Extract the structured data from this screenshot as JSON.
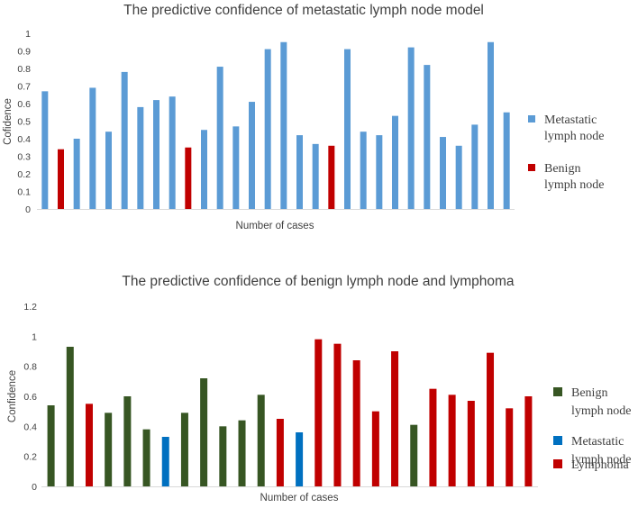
{
  "chart_data": [
    {
      "type": "bar",
      "title": "The predictive confidence of metastatic lymph node model",
      "xlabel": "Number of cases",
      "ylabel": "Cofidence",
      "ylim": [
        0,
        1
      ],
      "yticks": [
        "0",
        "0.1",
        "0.2",
        "0.3",
        "0.4",
        "0.5",
        "0.6",
        "0.7",
        "0.8",
        "0.9",
        "1"
      ],
      "grid": false,
      "legend_position": "right",
      "legend": [
        {
          "label_lines": [
            "Metastatic",
            "lymph node"
          ],
          "color": "#5b9bd5"
        },
        {
          "label_lines": [
            "Benign",
            "lymph node"
          ],
          "color": "#c00000"
        }
      ],
      "values": [
        0.67,
        0.34,
        0.4,
        0.69,
        0.44,
        0.78,
        0.58,
        0.62,
        0.64,
        0.35,
        0.45,
        0.81,
        0.47,
        0.61,
        0.91,
        0.95,
        0.42,
        0.37,
        0.36,
        0.91,
        0.44,
        0.42,
        0.53,
        0.92,
        0.82,
        0.41,
        0.36,
        0.48,
        0.95,
        0.55
      ],
      "classes": [
        0,
        1,
        0,
        0,
        0,
        0,
        0,
        0,
        0,
        1,
        0,
        0,
        0,
        0,
        0,
        0,
        0,
        0,
        1,
        0,
        0,
        0,
        0,
        0,
        0,
        0,
        0,
        0,
        0,
        0
      ]
    },
    {
      "type": "bar",
      "title": "The predictive confidence of benign lymph node and lymphoma",
      "xlabel": "Number of cases",
      "ylabel": "Confidence",
      "ylim": [
        0,
        1.2
      ],
      "yticks": [
        "0",
        "0.2",
        "0.4",
        "0.6",
        "0.8",
        "1",
        "1.2"
      ],
      "grid": false,
      "legend_position": "right",
      "legend": [
        {
          "label_lines": [
            "Benign",
            "lymph node"
          ],
          "color": "#375623"
        },
        {
          "label_lines": [
            "Metastatic",
            "lymph node"
          ],
          "color": "#0070c0"
        },
        {
          "label_lines": [
            "Lymphoma"
          ],
          "color": "#c00000"
        }
      ],
      "values": [
        0.54,
        0.93,
        0.55,
        0.49,
        0.6,
        0.38,
        0.33,
        0.49,
        0.72,
        0.4,
        0.44,
        0.61,
        0.45,
        0.36,
        0.98,
        0.95,
        0.84,
        0.5,
        0.9,
        0.41,
        0.65,
        0.61,
        0.57,
        0.89,
        0.52,
        0.6
      ],
      "classes": [
        0,
        0,
        2,
        0,
        0,
        0,
        1,
        0,
        0,
        0,
        0,
        0,
        2,
        1,
        2,
        2,
        2,
        2,
        2,
        0,
        2,
        2,
        2,
        2,
        2,
        2
      ]
    }
  ]
}
